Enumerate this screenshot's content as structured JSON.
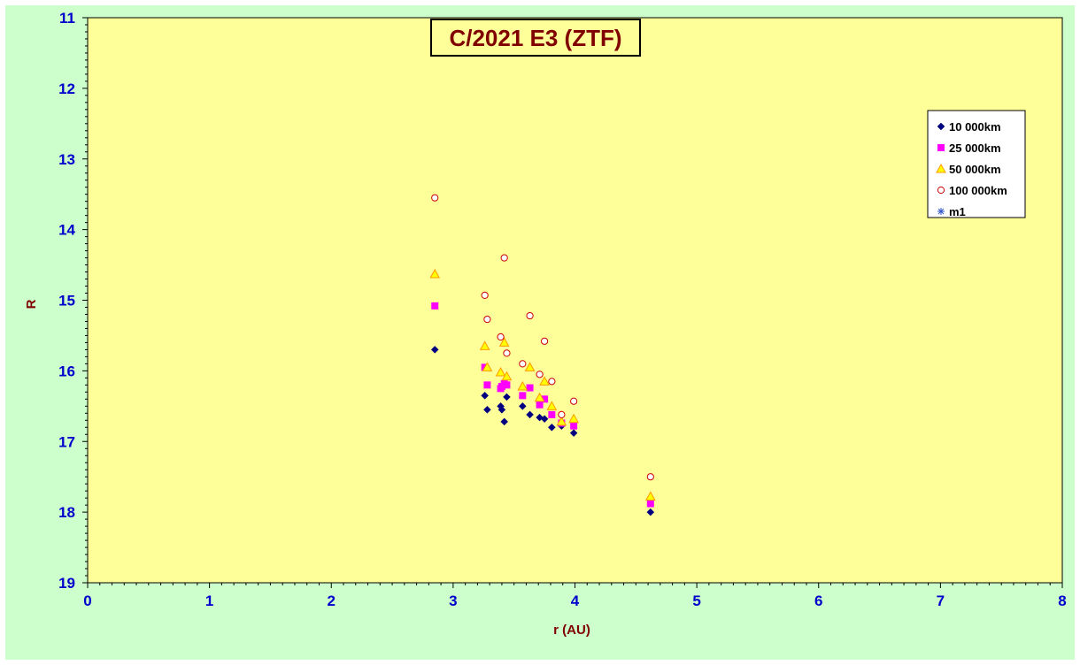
{
  "chart_data": {
    "type": "scatter",
    "title": "C/2021 E3 (ZTF)",
    "xlabel": "r (AU)",
    "ylabel": "R",
    "xlim": [
      0,
      8
    ],
    "ylim": [
      11,
      19
    ],
    "y_inverted": true,
    "x_ticks": [
      "0",
      "1",
      "2",
      "3",
      "4",
      "5",
      "6",
      "7",
      "8"
    ],
    "y_ticks": [
      "11",
      "12",
      "13",
      "14",
      "15",
      "16",
      "17",
      "18",
      "19"
    ],
    "grid": false,
    "legend_position": "top-right",
    "colors": {
      "outer_background": "#ccffcc",
      "plot_background": "#ffff99",
      "tick_labels": "#0000cc",
      "titles": "#800000"
    },
    "series": [
      {
        "name": "10 000km",
        "marker": "diamond",
        "color": "#000080",
        "x": [
          2.85,
          3.26,
          3.28,
          3.39,
          3.4,
          3.42,
          3.44,
          3.57,
          3.63,
          3.71,
          3.75,
          3.81,
          3.89,
          3.99,
          4.62
        ],
        "y": [
          15.7,
          16.35,
          16.55,
          16.5,
          16.55,
          16.72,
          16.37,
          16.5,
          16.62,
          16.66,
          16.68,
          16.8,
          16.78,
          16.88,
          18.0
        ]
      },
      {
        "name": "25 000km",
        "marker": "square",
        "color": "#ff00ff",
        "x": [
          2.85,
          3.26,
          3.28,
          3.39,
          3.4,
          3.42,
          3.44,
          3.57,
          3.63,
          3.71,
          3.75,
          3.81,
          3.89,
          3.99,
          4.62
        ],
        "y": [
          15.08,
          15.95,
          16.2,
          16.25,
          16.22,
          16.18,
          16.2,
          16.35,
          16.24,
          16.48,
          16.4,
          16.62,
          16.74,
          16.78,
          17.88
        ]
      },
      {
        "name": "50 000km",
        "marker": "triangle",
        "color": "#ff9900",
        "x": [
          2.85,
          3.26,
          3.28,
          3.39,
          3.42,
          3.44,
          3.57,
          3.63,
          3.71,
          3.75,
          3.81,
          3.89,
          3.99,
          4.62
        ],
        "y": [
          14.63,
          15.65,
          15.95,
          16.02,
          15.6,
          16.08,
          16.22,
          15.95,
          16.38,
          16.15,
          16.5,
          16.72,
          16.68,
          17.78
        ]
      },
      {
        "name": "100 000km",
        "marker": "circle",
        "color": "#cc0000",
        "x": [
          2.85,
          3.26,
          3.28,
          3.39,
          3.42,
          3.44,
          3.57,
          3.63,
          3.71,
          3.75,
          3.81,
          3.89,
          3.99,
          4.62
        ],
        "y": [
          13.55,
          14.93,
          15.27,
          15.52,
          14.4,
          15.75,
          15.9,
          15.22,
          16.05,
          15.58,
          16.15,
          16.62,
          16.43,
          17.5
        ]
      },
      {
        "name": "m1",
        "marker": "asterisk",
        "color": "#3355cc",
        "x": [],
        "y": []
      }
    ]
  }
}
